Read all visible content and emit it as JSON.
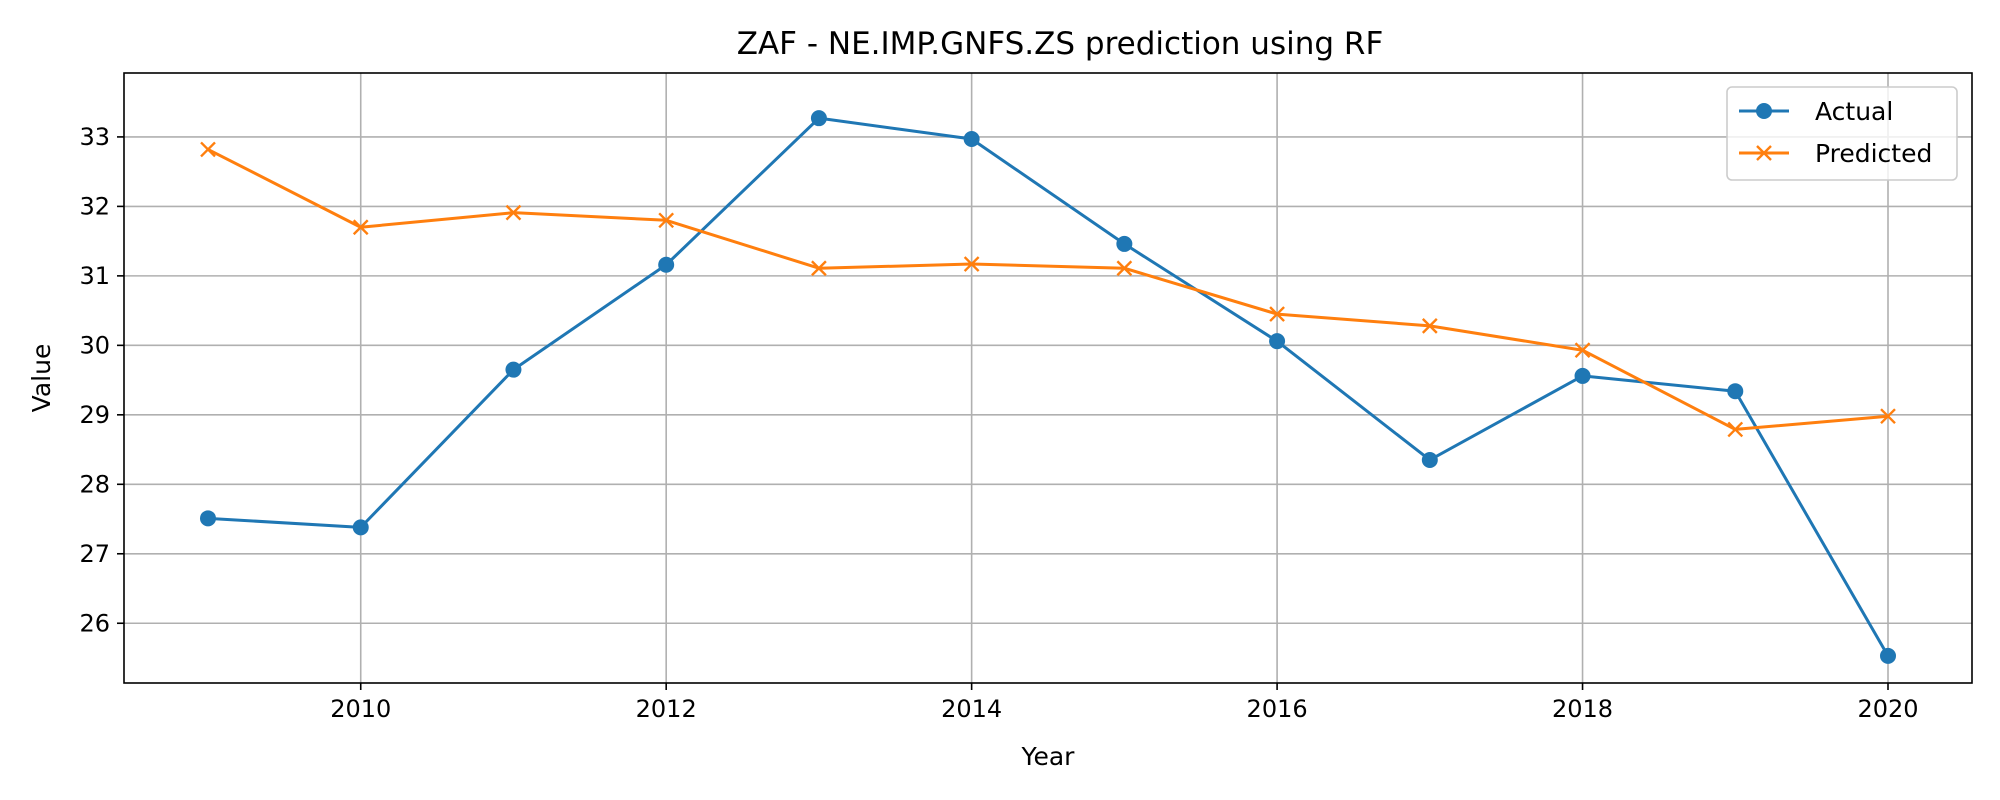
{
  "chart_data": {
    "type": "line",
    "title": "ZAF - NE.IMP.GNFS.ZS prediction using RF",
    "xlabel": "Year",
    "ylabel": "Value",
    "x": [
      2009,
      2010,
      2011,
      2012,
      2013,
      2014,
      2015,
      2016,
      2017,
      2018,
      2019,
      2020
    ],
    "xlim": [
      2008.45,
      2020.55
    ],
    "ylim": [
      25.14,
      33.92
    ],
    "xticks": [
      2010,
      2012,
      2014,
      2016,
      2018,
      2020
    ],
    "yticks": [
      26,
      27,
      28,
      29,
      30,
      31,
      32,
      33
    ],
    "grid": true,
    "legend_position": "top-right",
    "series": [
      {
        "name": "Actual",
        "color": "#1f77b4",
        "marker": "circle",
        "values": [
          27.51,
          27.38,
          29.65,
          31.16,
          33.27,
          32.97,
          31.46,
          30.06,
          28.35,
          29.56,
          29.34,
          25.53
        ]
      },
      {
        "name": "Predicted",
        "color": "#ff7f0e",
        "marker": "x",
        "values": [
          32.82,
          31.7,
          31.91,
          31.8,
          31.11,
          31.17,
          31.11,
          30.45,
          30.28,
          29.93,
          28.79,
          28.98
        ]
      }
    ]
  }
}
